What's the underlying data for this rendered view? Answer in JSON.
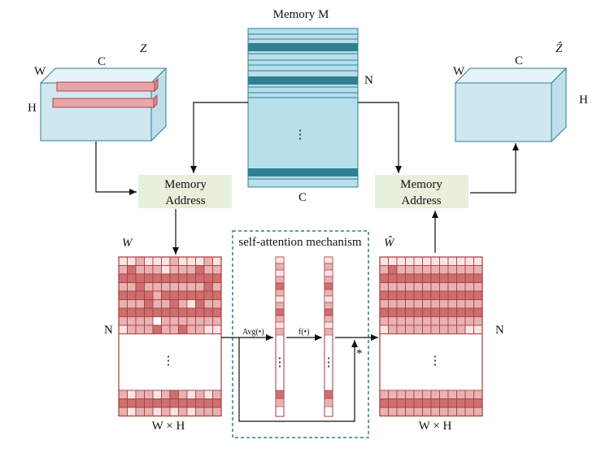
{
  "labels": {
    "memory_title": "Memory M",
    "memory_n": "N",
    "memory_c": "C",
    "memory_dots": "⋮",
    "z_name": "Z",
    "z_w": "W",
    "z_c": "C",
    "z_h": "H",
    "zhat_name": "Ẑ",
    "zhat_w": "W",
    "zhat_c": "C",
    "zhat_h": "H",
    "addr_left_line1": "Memory",
    "addr_left_line2": "Address",
    "addr_right_line1": "Memory",
    "addr_right_line2": "Address",
    "w_name": "W",
    "what_name": "Ŵ",
    "w_n": "N",
    "what_n": "N",
    "w_wh": "W × H",
    "what_wh": "W × H",
    "w_dots": "⋮",
    "what_dots": "⋮",
    "sa_title": "self-attention mechanism",
    "avg_label": "Avg(•)",
    "f_label": "f(•)",
    "star": "*",
    "vec_dots": "⋮"
  },
  "colors": {
    "cube_fill": "#cfe8f0",
    "memory_light": "#b8e0ea",
    "memory_dark": "#2e7f93",
    "grid_dark": "#cd6f6f",
    "grid_mid": "#e9b2b2",
    "grid_light": "#fbe4e4",
    "grid_line": "#a53a3a",
    "address_fill": "#e8f0dc",
    "dash_border": "#2e7f93"
  }
}
